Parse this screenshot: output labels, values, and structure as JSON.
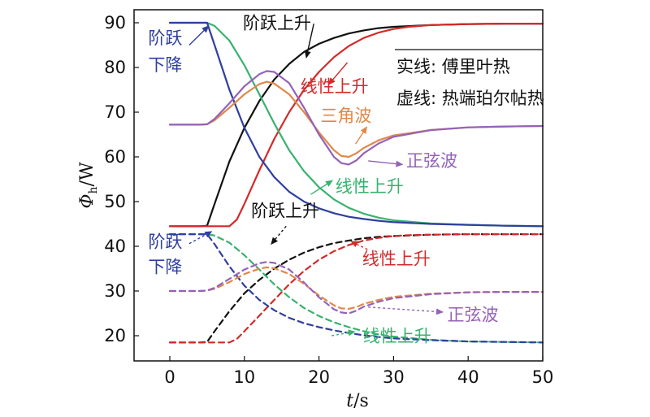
{
  "chart_data": {
    "type": "line",
    "xlabel": {
      "italic": "t",
      "rest": "/s"
    },
    "ylabel": {
      "symbol": "Φ",
      "sub": "h",
      "rest": "/W"
    },
    "xlim": [
      -5,
      50
    ],
    "ylim": [
      17,
      90
    ],
    "xticks": [
      0,
      10,
      20,
      30,
      40,
      50
    ],
    "yticks": [
      20,
      30,
      40,
      50,
      60,
      70,
      80,
      90
    ],
    "grid": false,
    "legend_placement": "top-right",
    "legend": [
      "实线: 傅里叶热",
      "虚线: 热端珀尔帖热"
    ],
    "colors": {
      "black": "#111111",
      "red": "#d42a2a",
      "green": "#38b26e",
      "blue": "#2f3f9e",
      "orange": "#e0884a",
      "purple": "#9462b8"
    },
    "series": [
      {
        "group": "solid",
        "color": "black",
        "x": [
          0,
          4,
          5,
          6,
          8,
          10,
          12,
          14,
          16,
          18,
          20,
          22,
          24,
          26,
          28,
          30,
          35,
          40,
          45,
          50
        ],
        "y": [
          44.5,
          44.5,
          44.6,
          49.5,
          59,
          66.5,
          72.5,
          77.3,
          80.8,
          83.5,
          85.3,
          86.6,
          87.6,
          88.3,
          88.8,
          89.1,
          89.5,
          89.7,
          89.8,
          89.8
        ]
      },
      {
        "group": "solid",
        "color": "red",
        "x": [
          0,
          8,
          9,
          10,
          12,
          14,
          16,
          18,
          20,
          22,
          24,
          26,
          28,
          30,
          32,
          35,
          40,
          45,
          50
        ],
        "y": [
          44.5,
          44.5,
          46,
          49.5,
          57,
          64,
          70,
          75,
          79,
          82.3,
          84.8,
          86.6,
          87.8,
          88.6,
          89.1,
          89.5,
          89.7,
          89.8,
          89.8
        ]
      },
      {
        "group": "solid",
        "color": "green",
        "x": [
          0,
          5,
          6,
          8,
          10,
          12,
          14,
          16,
          18,
          20,
          22,
          24,
          26,
          28,
          30,
          35,
          40,
          45,
          50
        ],
        "y": [
          90,
          90,
          89.3,
          86,
          80.5,
          74,
          67.5,
          61.5,
          56.8,
          53.2,
          50.5,
          48.6,
          47.3,
          46.4,
          45.8,
          45.1,
          44.8,
          44.6,
          44.5
        ]
      },
      {
        "group": "solid",
        "color": "blue",
        "x": [
          0,
          5,
          6,
          8,
          10,
          12,
          14,
          16,
          18,
          20,
          22,
          24,
          26,
          28,
          30,
          35,
          40,
          45,
          50
        ],
        "y": [
          90,
          90,
          85,
          75,
          66.5,
          60,
          55.5,
          52.2,
          50,
          48.5,
          47.4,
          46.6,
          46.1,
          45.7,
          45.4,
          45,
          44.8,
          44.6,
          44.5
        ]
      },
      {
        "group": "solid",
        "color": "orange",
        "x": [
          0,
          4,
          5,
          6,
          8,
          10,
          12,
          13,
          14,
          16,
          18,
          20,
          22,
          23,
          24,
          25,
          26,
          28,
          30,
          35,
          40,
          45,
          50
        ],
        "y": [
          67.2,
          67.2,
          67.3,
          68.2,
          71,
          74,
          76.3,
          76.8,
          76.4,
          74,
          70,
          65.5,
          61.5,
          60.2,
          60,
          60.8,
          62,
          63.7,
          64.8,
          66,
          66.6,
          66.8,
          66.9
        ]
      },
      {
        "group": "solid",
        "color": "purple",
        "x": [
          0,
          4,
          5,
          6,
          8,
          10,
          12,
          13,
          14,
          16,
          18,
          20,
          22,
          23,
          24,
          25,
          26,
          28,
          30,
          35,
          40,
          45,
          50
        ],
        "y": [
          67.2,
          67.2,
          67.3,
          68.5,
          72,
          75.8,
          78.5,
          79.2,
          79,
          76.5,
          71,
          65,
          60,
          58.6,
          58.3,
          59.2,
          60.8,
          63,
          64.5,
          66,
          66.6,
          66.8,
          66.9
        ]
      },
      {
        "group": "dashed",
        "color": "black",
        "x": [
          0,
          4,
          5,
          6,
          8,
          10,
          12,
          14,
          16,
          18,
          20,
          22,
          24,
          26,
          28,
          30,
          35,
          40,
          45,
          50
        ],
        "y": [
          18.5,
          18.5,
          18.6,
          21,
          25.5,
          29.5,
          32.5,
          35,
          37,
          38.6,
          39.8,
          40.7,
          41.3,
          41.8,
          42.1,
          42.3,
          42.6,
          42.7,
          42.7,
          42.7
        ]
      },
      {
        "group": "dashed",
        "color": "red",
        "x": [
          0,
          8,
          9,
          10,
          12,
          14,
          16,
          18,
          20,
          22,
          24,
          26,
          28,
          30,
          32,
          35,
          40,
          45,
          50
        ],
        "y": [
          18.5,
          18.5,
          19.3,
          21,
          24.5,
          28,
          31.5,
          34.5,
          37,
          38.9,
          40.3,
          41.3,
          41.9,
          42.3,
          42.5,
          42.6,
          42.7,
          42.7,
          42.7
        ]
      },
      {
        "group": "dashed",
        "color": "green",
        "x": [
          0,
          5,
          6,
          8,
          10,
          12,
          14,
          16,
          18,
          20,
          22,
          24,
          26,
          28,
          30,
          35,
          40,
          45,
          50
        ],
        "y": [
          42.7,
          42.7,
          42.4,
          40.8,
          38,
          34.8,
          31.5,
          28.6,
          26.2,
          24.4,
          23,
          21.9,
          21,
          20.3,
          19.8,
          19.1,
          18.7,
          18.6,
          18.5
        ]
      },
      {
        "group": "dashed",
        "color": "blue",
        "x": [
          0,
          5,
          6,
          8,
          10,
          12,
          14,
          16,
          18,
          20,
          22,
          24,
          26,
          28,
          30,
          35,
          40,
          45,
          50
        ],
        "y": [
          42.7,
          42.7,
          40.5,
          35.5,
          31.2,
          28,
          25.7,
          24,
          22.8,
          21.9,
          21.2,
          20.6,
          20.1,
          19.7,
          19.4,
          19,
          18.7,
          18.6,
          18.5
        ]
      },
      {
        "group": "dashed",
        "color": "orange",
        "x": [
          0,
          4,
          5,
          6,
          8,
          10,
          12,
          13,
          14,
          16,
          18,
          20,
          22,
          23,
          24,
          25,
          26,
          28,
          30,
          35,
          40,
          45,
          50
        ],
        "y": [
          30,
          30,
          30.1,
          30.5,
          32,
          33.8,
          35,
          35.3,
          35.1,
          33.8,
          31.6,
          29,
          26.8,
          26.1,
          26,
          26.4,
          27.1,
          28,
          28.7,
          29.4,
          29.7,
          29.8,
          29.8
        ]
      },
      {
        "group": "dashed",
        "color": "purple",
        "x": [
          0,
          4,
          5,
          6,
          8,
          10,
          12,
          13,
          14,
          16,
          18,
          20,
          22,
          23,
          24,
          25,
          26,
          28,
          30,
          35,
          40,
          45,
          50
        ],
        "y": [
          30,
          30,
          30.1,
          30.7,
          32.7,
          34.8,
          36.2,
          36.5,
          36.3,
          34.8,
          31.9,
          28.6,
          25.9,
          25.2,
          25,
          25.6,
          26.5,
          27.6,
          28.4,
          29.3,
          29.7,
          29.8,
          29.8
        ]
      }
    ],
    "annotations": [
      {
        "text": "阶跃上升",
        "color": "black",
        "x": 9.8,
        "y": 88.6,
        "arrow": [
          [
            19.3,
            89.8
          ],
          [
            18.3,
            82.2
          ]
        ]
      },
      {
        "text": "阶跃",
        "color": "blue",
        "x": -2.9,
        "y": 85.3,
        "arrow": [
          [
            2.6,
            85
          ],
          [
            5.2,
            89.3
          ]
        ]
      },
      {
        "text": "下降",
        "color": "blue",
        "x": -2.9,
        "y": 79.3
      },
      {
        "text": "线性上升",
        "color": "red",
        "x": 17.5,
        "y": 74.5,
        "arrow": [
          [
            23.8,
            81.1
          ],
          [
            21.3,
            76.2
          ]
        ]
      },
      {
        "text": "三角波",
        "color": "orange",
        "x": 20.2,
        "y": 67.9,
        "arrow": [
          [
            24.9,
            62.9
          ],
          [
            26.4,
            66.7
          ]
        ]
      },
      {
        "text": "正弦波",
        "color": "purple",
        "x": 31.7,
        "y": 57.8,
        "arrow": [
          [
            26.6,
            59.1
          ],
          [
            31.2,
            58.3
          ]
        ]
      },
      {
        "text": "线性上升",
        "color": "green",
        "x": 22.2,
        "y": 52.1,
        "arrow": [
          [
            18.9,
            51.6
          ],
          [
            21.8,
            54.7
          ]
        ]
      },
      {
        "text": "阶跃上升",
        "color": "black",
        "x": 10.9,
        "y": 46.6,
        "arrow": [
          [
            15.6,
            44.5
          ],
          [
            13.6,
            40.5
          ]
        ],
        "dashed": true
      },
      {
        "text": "阶跃",
        "color": "blue",
        "x": -2.9,
        "y": 39.7,
        "arrow": [
          [
            2.6,
            40.6
          ],
          [
            5.6,
            43.3
          ]
        ],
        "dashed": true
      },
      {
        "text": "下降",
        "color": "blue",
        "x": -2.9,
        "y": 34.1
      },
      {
        "text": "线性上升",
        "color": "red",
        "x": 25.8,
        "y": 35.9,
        "arrow": [
          [
            26.5,
            39.3
          ],
          [
            24.3,
            41.1
          ]
        ],
        "dashed": true
      },
      {
        "text": "正弦波",
        "color": "purple",
        "x": 37.2,
        "y": 23.4,
        "arrow": [
          [
            26.6,
            26.4
          ],
          [
            36.6,
            25.3
          ]
        ],
        "dashed": true
      },
      {
        "text": "线性上升",
        "color": "green",
        "x": 25.9,
        "y": 18.6,
        "arrow": [
          [
            21.7,
            20
          ],
          [
            24.8,
            20.9
          ]
        ],
        "dashed": true
      }
    ]
  }
}
